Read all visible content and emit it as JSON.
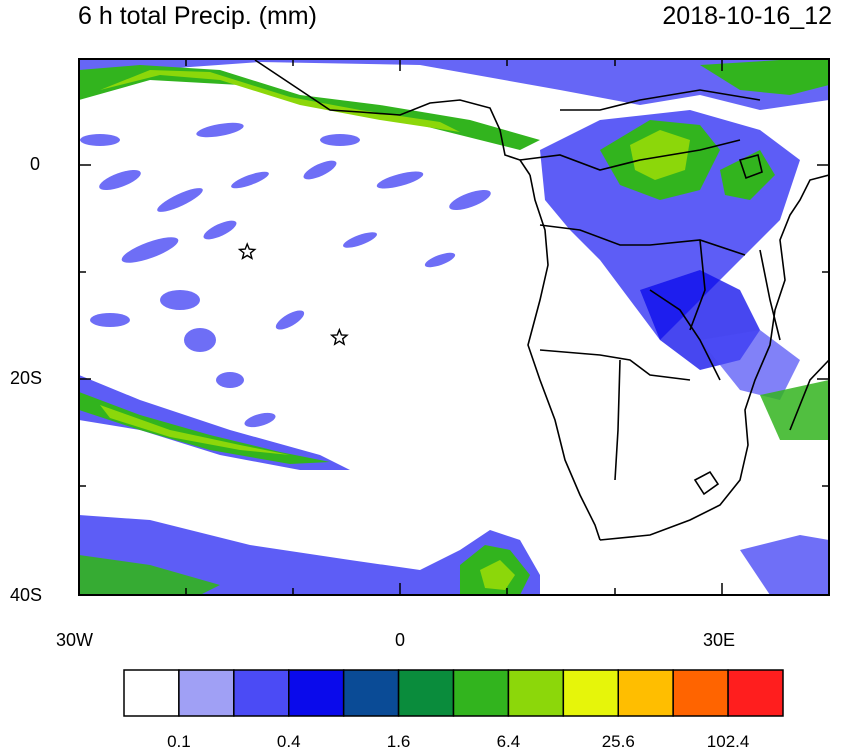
{
  "map": {
    "title": "6 h total Precip. (mm)",
    "date": "2018-10-16_12",
    "y_labels": [
      {
        "lat": 0,
        "text": "0"
      },
      {
        "lat": -20,
        "text": "20S"
      },
      {
        "lat": -40,
        "text": "40S"
      }
    ],
    "x_labels": [
      {
        "lon": -30,
        "text": "30W"
      },
      {
        "lon": 0,
        "text": "0"
      },
      {
        "lon": 30,
        "text": "30E"
      }
    ],
    "lon_range": [
      -30,
      40
    ],
    "lat_range": [
      -40,
      10
    ],
    "colorbar": {
      "colors": [
        "#ffffff",
        "#a0a0f5",
        "#4b4bf5",
        "#0a0aeb",
        "#0a4b96",
        "#0a8c3c",
        "#32b41e",
        "#8cd70a",
        "#e6f50a",
        "#ffbe00",
        "#ff6400",
        "#ff1e1e"
      ],
      "labels": [
        "0.1",
        "0.4",
        "1.6",
        "6.4",
        "25.6",
        "102.4"
      ]
    },
    "markers": [
      {
        "lon": -14.3,
        "lat": -8.0,
        "symbol": "star"
      },
      {
        "lon": -5.7,
        "lat": -16.0,
        "symbol": "star"
      }
    ]
  }
}
